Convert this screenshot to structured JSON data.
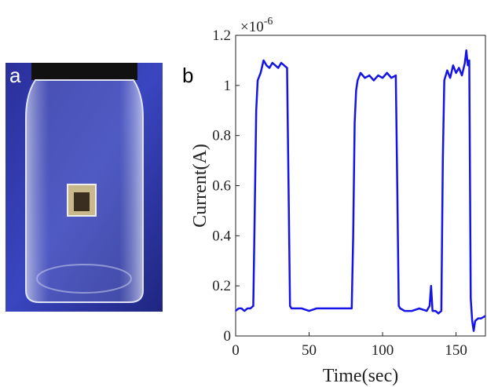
{
  "photo_label": "a",
  "chart_data": {
    "type": "line",
    "panel_label": "b",
    "x_label": "Time(sec)",
    "y_label": "Current(A)",
    "y_exponent_base": "×10",
    "y_exponent_power": "-6",
    "xlim": [
      0,
      170
    ],
    "xticks": [
      0,
      50,
      100,
      150
    ],
    "ylim": [
      0,
      1.2
    ],
    "yticks": [
      0,
      0.2,
      0.4,
      0.6,
      0.8,
      1,
      1.2
    ],
    "x": [
      0,
      2,
      4,
      6,
      8,
      10,
      12,
      13,
      14,
      15,
      17,
      19,
      21,
      23,
      25,
      27,
      29,
      31,
      33,
      35,
      36,
      37,
      38,
      40,
      45,
      50,
      55,
      60,
      65,
      70,
      75,
      79,
      80,
      81,
      82,
      83,
      85,
      88,
      91,
      94,
      97,
      100,
      103,
      106,
      109,
      110,
      111,
      112,
      115,
      120,
      125,
      130,
      132,
      133,
      134,
      136,
      138,
      140,
      141,
      142,
      144,
      146,
      148,
      150,
      152,
      154,
      156,
      157,
      158,
      159,
      160,
      161,
      162,
      163,
      165,
      167,
      170
    ],
    "series": [
      {
        "color": "#1414e6",
        "values": [
          0.1,
          0.11,
          0.11,
          0.1,
          0.11,
          0.11,
          0.12,
          0.5,
          0.9,
          1.02,
          1.05,
          1.1,
          1.08,
          1.07,
          1.09,
          1.08,
          1.07,
          1.09,
          1.08,
          1.07,
          0.6,
          0.12,
          0.11,
          0.11,
          0.11,
          0.1,
          0.11,
          0.11,
          0.11,
          0.11,
          0.11,
          0.11,
          0.4,
          0.85,
          0.98,
          1.02,
          1.05,
          1.03,
          1.04,
          1.02,
          1.04,
          1.03,
          1.05,
          1.03,
          1.04,
          0.6,
          0.12,
          0.11,
          0.1,
          0.1,
          0.11,
          0.1,
          0.12,
          0.2,
          0.1,
          0.1,
          0.09,
          0.1,
          0.7,
          1.02,
          1.06,
          1.03,
          1.08,
          1.05,
          1.07,
          1.04,
          1.09,
          1.14,
          1.08,
          1.1,
          0.15,
          0.06,
          0.02,
          0.06,
          0.07,
          0.07,
          0.08
        ]
      }
    ]
  }
}
